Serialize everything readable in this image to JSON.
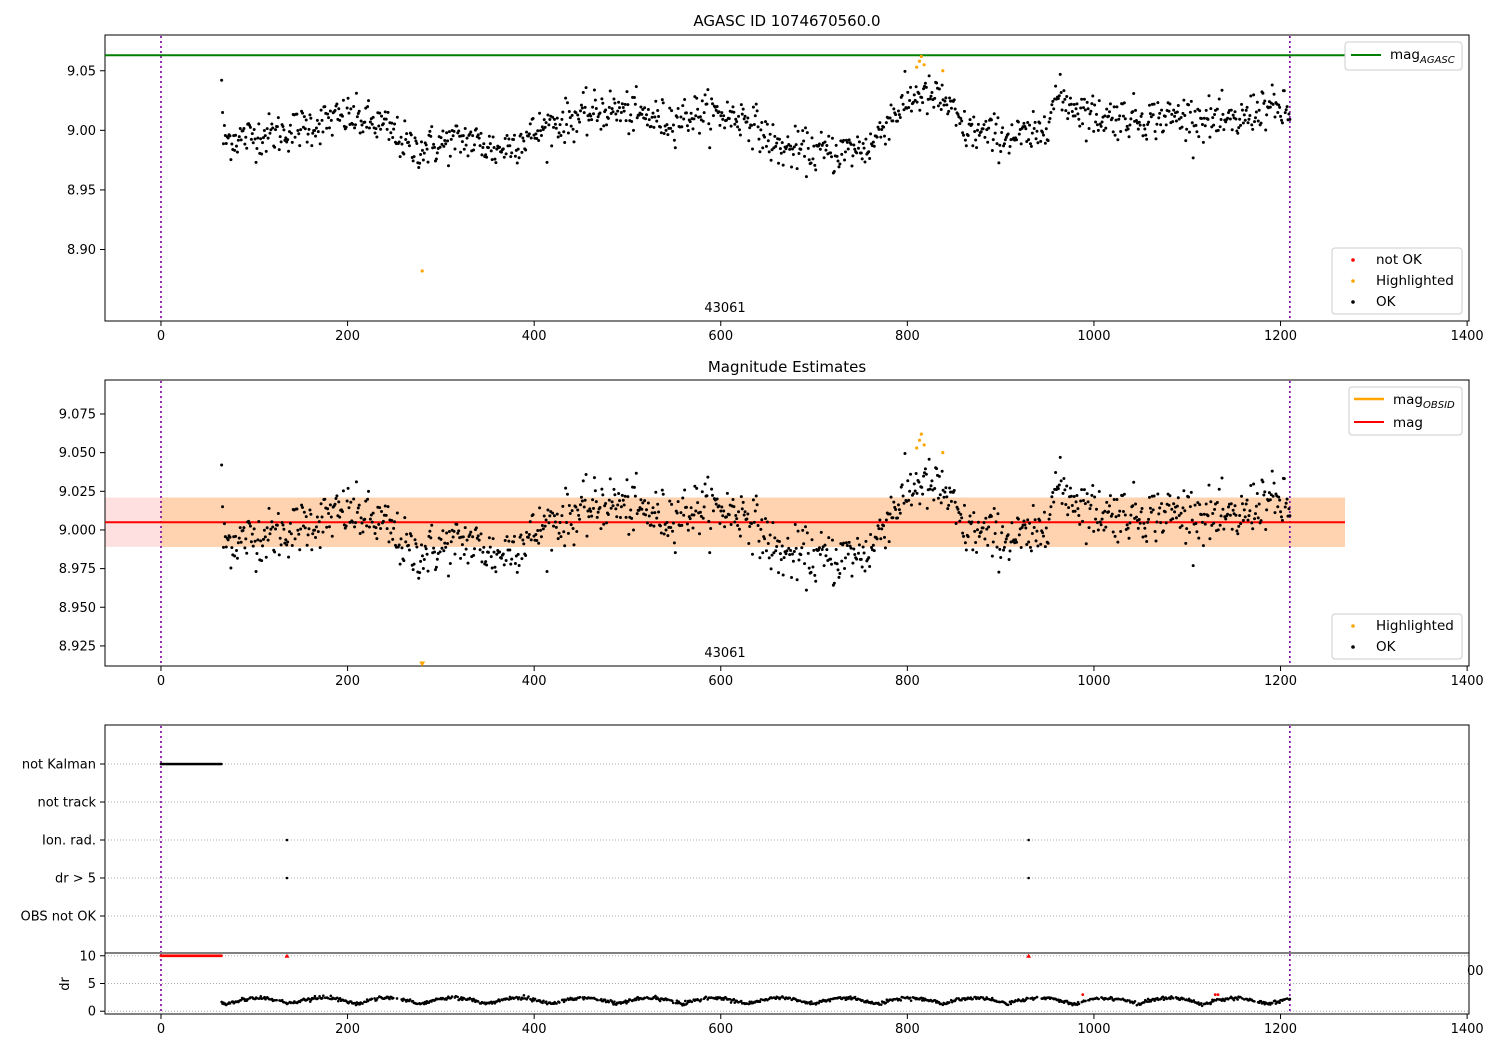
{
  "chart_data": [
    {
      "type": "scatter",
      "title": "AGASC ID 1074670560.0",
      "xlim": [
        -60,
        1402
      ],
      "ylim": [
        8.84,
        9.08
      ],
      "xticks": [
        "0",
        "200",
        "400",
        "600",
        "800",
        "1000",
        "1200",
        "1400"
      ],
      "yticks": [
        "8.90",
        "8.95",
        "9.00",
        "9.05"
      ],
      "obsid_label": "43061",
      "obs_boundaries_x": [
        0,
        1210
      ],
      "mag_agasc": 9.063,
      "legend_lines": [
        "mag_AGASC"
      ],
      "legend_points": [
        "not OK",
        "Highlighted",
        "OK"
      ],
      "series": [
        {
          "name": "OK",
          "color": "#000000",
          "x_range": [
            65,
            1210
          ],
          "n_points": 1150,
          "mean": 9.004,
          "rms": 0.013
        },
        {
          "name": "Highlighted",
          "color": "#ffa500",
          "points": [
            [
              280,
              8.882
            ],
            [
              810,
              9.053
            ],
            [
              813,
              9.058
            ],
            [
              815,
              9.062
            ],
            [
              818,
              9.055
            ],
            [
              838,
              9.05
            ]
          ]
        },
        {
          "name": "not OK",
          "color": "#ff0000",
          "points": []
        }
      ]
    },
    {
      "type": "scatter",
      "title": "Magnitude Estimates",
      "xlim": [
        -60,
        1402
      ],
      "ylim": [
        8.912,
        9.097
      ],
      "xticks": [
        "0",
        "200",
        "400",
        "600",
        "800",
        "1000",
        "1200",
        "1400"
      ],
      "yticks": [
        "8.925",
        "8.950",
        "8.975",
        "9.000",
        "9.025",
        "9.050",
        "9.075"
      ],
      "obsid_label": "43061",
      "obs_boundaries_x": [
        0,
        1210
      ],
      "mag": 9.005,
      "mag_band": [
        8.989,
        9.021
      ],
      "mag_obsid_band": [
        8.989,
        9.021
      ],
      "legend_lines": [
        "mag_OBSID",
        "mag"
      ],
      "legend_points": [
        "Highlighted",
        "OK"
      ],
      "series": [
        {
          "name": "OK",
          "color": "#000000",
          "x_range": [
            65,
            1210
          ],
          "n_points": 1150
        },
        {
          "name": "Highlighted",
          "color": "#ffa500",
          "points": [
            [
              280,
              8.913
            ],
            [
              810,
              9.053
            ],
            [
              813,
              9.058
            ],
            [
              815,
              9.062
            ],
            [
              818,
              9.055
            ],
            [
              838,
              9.05
            ]
          ]
        }
      ]
    },
    {
      "type": "scatter",
      "title": "",
      "xlim": [
        -60,
        1402
      ],
      "flag_rows": [
        "not Kalman",
        "not track",
        "Ion. rad.",
        "dr > 5",
        "OBS not OK"
      ],
      "flags": {
        "not Kalman": {
          "x_range": [
            0,
            65
          ]
        },
        "not track": {
          "x_points": []
        },
        "Ion. rad.": {
          "x_points": [
            135,
            930
          ]
        },
        "dr > 5": {
          "x_points": [
            135,
            930
          ]
        },
        "OBS not OK": {
          "x_points": []
        }
      },
      "obs_boundaries_x": [
        0,
        1210
      ]
    },
    {
      "type": "scatter",
      "title": "",
      "ylabel": "dr",
      "xlim": [
        -60,
        1402
      ],
      "ylim": [
        -0.5,
        10.5
      ],
      "xticks": [
        "0",
        "200",
        "400",
        "600",
        "800",
        "1000",
        "1200",
        "1400"
      ],
      "yticks": [
        "0",
        "5",
        "10"
      ],
      "clipped_value": 10,
      "red_clipped_x": [
        [
          0,
          65
        ],
        [
          135,
          135
        ],
        [
          930,
          930
        ]
      ],
      "series": [
        {
          "name": "dr",
          "color": "#000000",
          "x_range": [
            65,
            1210
          ],
          "y_range": [
            0,
            3
          ]
        }
      ],
      "overlap_tick_fragment": "00"
    }
  ]
}
